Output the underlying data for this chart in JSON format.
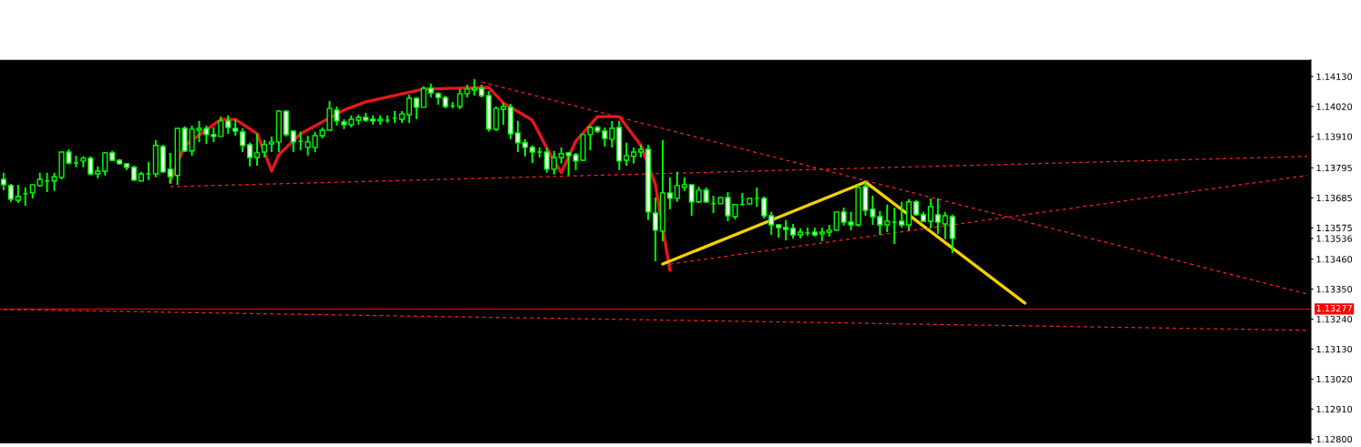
{
  "chart_data": {
    "type": "candlestick",
    "categories": [
      null,
      null,
      null,
      null,
      null,
      null,
      null,
      null,
      null,
      null,
      null,
      null,
      null,
      null,
      null,
      null,
      null,
      null,
      null,
      null,
      null,
      null,
      null,
      null,
      null,
      null,
      null,
      null,
      null,
      null,
      null,
      null,
      null,
      null,
      null,
      null,
      null,
      null,
      null,
      null,
      null,
      null,
      null,
      null,
      null,
      null,
      null,
      null,
      null,
      null,
      null,
      null,
      null,
      null,
      null,
      null,
      null,
      null,
      null,
      null,
      null,
      null,
      null,
      null,
      null,
      null,
      null,
      null,
      null,
      null,
      null,
      null,
      null,
      null,
      null,
      null,
      null,
      null,
      null,
      null,
      null,
      null,
      null,
      null,
      null,
      null,
      null,
      null,
      null,
      null,
      null,
      null,
      null,
      null,
      null,
      null,
      null,
      null,
      null,
      null,
      null,
      null,
      null,
      null,
      null,
      null,
      null,
      null,
      null,
      null,
      null,
      null,
      null,
      null,
      null,
      null,
      null,
      null,
      null,
      null,
      null,
      null,
      null,
      null,
      null,
      null,
      null,
      null,
      null,
      null,
      null,
      null,
      null,
      null,
      null,
      null,
      null,
      null,
      null,
      null,
      null,
      null,
      null,
      null,
      null,
      null,
      null,
      null,
      null,
      null,
      null,
      null,
      null,
      null,
      null,
      null,
      null,
      null,
      null,
      null,
      null,
      null,
      null,
      null,
      null,
      null,
      null,
      null,
      null,
      null,
      null,
      null,
      null,
      null,
      null,
      null,
      null,
      null,
      null,
      null,
      null
    ],
    "ohlc": [
      [
        1.13753,
        1.13777,
        1.13713,
        1.13733
      ],
      [
        1.1373,
        1.13736,
        1.1367,
        1.1368
      ],
      [
        1.13676,
        1.13733,
        1.13666,
        1.1369
      ],
      [
        1.137,
        1.13723,
        1.13656,
        1.137
      ],
      [
        1.13703,
        1.13733,
        1.13683,
        1.13733
      ],
      [
        1.1373,
        1.13777,
        1.13726,
        1.13753
      ],
      [
        1.13747,
        1.13777,
        1.13706,
        1.13747
      ],
      [
        1.13747,
        1.13777,
        1.1371,
        1.13763
      ],
      [
        1.1376,
        1.13853,
        1.13753,
        1.13853
      ],
      [
        1.13853,
        1.13863,
        1.13807,
        1.13813
      ],
      [
        1.13813,
        1.1384,
        1.13797,
        1.13813
      ],
      [
        1.1382,
        1.13837,
        1.13797,
        1.1383
      ],
      [
        1.1383,
        1.13837,
        1.13767,
        1.13773
      ],
      [
        1.13773,
        1.138,
        1.13757,
        1.13783
      ],
      [
        1.13783,
        1.13853,
        1.13767,
        1.1385
      ],
      [
        1.1385,
        1.13857,
        1.1382,
        1.13823
      ],
      [
        1.13823,
        1.13827,
        1.13807,
        1.1381
      ],
      [
        1.1381,
        1.13813,
        1.13787,
        1.13797
      ],
      [
        1.13797,
        1.13803,
        1.13747,
        1.1375
      ],
      [
        1.13747,
        1.1378,
        1.13747,
        1.13773
      ],
      [
        1.13773,
        1.13817,
        1.1375,
        1.13773
      ],
      [
        1.13773,
        1.13897,
        1.1376,
        1.13877
      ],
      [
        1.13873,
        1.1388,
        1.13777,
        1.1378
      ],
      [
        1.1379,
        1.1385,
        1.13736,
        1.13763
      ],
      [
        1.13767,
        1.1394,
        1.13733,
        1.1394
      ],
      [
        1.1394,
        1.13947,
        1.13853,
        1.13857
      ],
      [
        1.13857,
        1.1395,
        1.1384,
        1.13937
      ],
      [
        1.13933,
        1.13967,
        1.1389,
        1.1394
      ],
      [
        1.1394,
        1.1395,
        1.13883,
        1.13917
      ],
      [
        1.13917,
        1.13943,
        1.1389,
        1.1391
      ],
      [
        1.1391,
        1.13983,
        1.1391,
        1.13967
      ],
      [
        1.13967,
        1.13987,
        1.1392,
        1.13943
      ],
      [
        1.1394,
        1.13973,
        1.13913,
        1.1393
      ],
      [
        1.13927,
        1.1394,
        1.13853,
        1.13877
      ],
      [
        1.1388,
        1.13887,
        1.138,
        1.13833
      ],
      [
        1.13833,
        1.1392,
        1.13803,
        1.1385
      ],
      [
        1.13853,
        1.13897,
        1.13833,
        1.1388
      ],
      [
        1.13883,
        1.1391,
        1.13853,
        1.1389
      ],
      [
        1.1389,
        1.14007,
        1.13853,
        1.14003
      ],
      [
        1.14003,
        1.14007,
        1.1391,
        1.13917
      ],
      [
        1.1393,
        1.13933,
        1.13853,
        1.1389
      ],
      [
        1.13893,
        1.13927,
        1.1386,
        1.13893
      ],
      [
        1.1387,
        1.13913,
        1.1384,
        1.1389
      ],
      [
        1.1387,
        1.13927,
        1.13853,
        1.13913
      ],
      [
        1.13913,
        1.13943,
        1.13903,
        1.13933
      ],
      [
        1.13933,
        1.1404,
        1.13933,
        1.14013
      ],
      [
        1.14007,
        1.1402,
        1.1395,
        1.13967
      ],
      [
        1.13963,
        1.13973,
        1.13937,
        1.13953
      ],
      [
        1.13953,
        1.13987,
        1.13943,
        1.13973
      ],
      [
        1.1397,
        1.1399,
        1.13953,
        1.1398
      ],
      [
        1.1398,
        1.13997,
        1.13963,
        1.1397
      ],
      [
        1.13973,
        1.13987,
        1.13953,
        1.13967
      ],
      [
        1.13967,
        1.13987,
        1.13953,
        1.13973
      ],
      [
        1.1397,
        1.13987,
        1.1396,
        1.1397
      ],
      [
        1.13977,
        1.14003,
        1.1396,
        1.13977
      ],
      [
        1.13973,
        1.14003,
        1.1396,
        1.13993
      ],
      [
        1.1399,
        1.14063,
        1.1396,
        1.1405
      ],
      [
        1.1405,
        1.14053,
        1.13973,
        1.14017
      ],
      [
        1.14017,
        1.14094,
        1.14017,
        1.14087
      ],
      [
        1.14087,
        1.14104,
        1.14053,
        1.1407
      ],
      [
        1.14067,
        1.14073,
        1.14027,
        1.14053
      ],
      [
        1.14053,
        1.1406,
        1.14013,
        1.1402
      ],
      [
        1.14023,
        1.14037,
        1.14013,
        1.14023
      ],
      [
        1.1402,
        1.14084,
        1.1401,
        1.14067
      ],
      [
        1.14067,
        1.141,
        1.14053,
        1.14084
      ],
      [
        1.1408,
        1.1412,
        1.1406,
        1.14087
      ],
      [
        1.14087,
        1.141,
        1.14053,
        1.1406
      ],
      [
        1.1406,
        1.14077,
        1.13927,
        1.13937
      ],
      [
        1.13937,
        1.1402,
        1.1393,
        1.14013
      ],
      [
        1.1401,
        1.14033,
        1.13953,
        1.1402
      ],
      [
        1.14017,
        1.1403,
        1.139,
        1.1392
      ],
      [
        1.13923,
        1.13967,
        1.13853,
        1.13887
      ],
      [
        1.13887,
        1.139,
        1.13837,
        1.1387
      ],
      [
        1.1387,
        1.13877,
        1.13813,
        1.13853
      ],
      [
        1.13853,
        1.1387,
        1.13833,
        1.13853
      ],
      [
        1.13853,
        1.13867,
        1.13777,
        1.1379
      ],
      [
        1.1379,
        1.13857,
        1.1377,
        1.13833
      ],
      [
        1.13833,
        1.1387,
        1.1381,
        1.13847
      ],
      [
        1.1385,
        1.13853,
        1.13767,
        1.1384
      ],
      [
        1.13843,
        1.1385,
        1.13787,
        1.1382
      ],
      [
        1.13823,
        1.13917,
        1.1382,
        1.13917
      ],
      [
        1.13917,
        1.1395,
        1.1386,
        1.13943
      ],
      [
        1.13943,
        1.1395,
        1.13923,
        1.1393
      ],
      [
        1.1393,
        1.13943,
        1.13873,
        1.13903
      ],
      [
        1.139,
        1.13967,
        1.1387,
        1.1394
      ],
      [
        1.13943,
        1.13967,
        1.13787,
        1.1382
      ],
      [
        1.13823,
        1.13887,
        1.13803,
        1.1384
      ],
      [
        1.13837,
        1.1387,
        1.1381,
        1.13853
      ],
      [
        1.13853,
        1.1388,
        1.13833,
        1.13863
      ],
      [
        1.13863,
        1.1388,
        1.13603,
        1.13633
      ],
      [
        1.13629,
        1.13686,
        1.13452,
        1.13566
      ],
      [
        1.13563,
        1.13897,
        1.13526,
        1.13703
      ],
      [
        1.13703,
        1.1376,
        1.13643,
        1.13683
      ],
      [
        1.13683,
        1.1378,
        1.1367,
        1.1373
      ],
      [
        1.13723,
        1.1376,
        1.1371,
        1.13733
      ],
      [
        1.13733,
        1.13733,
        1.13619,
        1.1367
      ],
      [
        1.1367,
        1.13726,
        1.13666,
        1.13713
      ],
      [
        1.13713,
        1.13723,
        1.13666,
        1.1367
      ],
      [
        1.13663,
        1.13693,
        1.13629,
        1.13663
      ],
      [
        1.13663,
        1.13686,
        1.13663,
        1.13686
      ],
      [
        1.13686,
        1.13706,
        1.13599,
        1.13619
      ],
      [
        1.13616,
        1.1366,
        1.13606,
        1.1366
      ],
      [
        1.1366,
        1.13703,
        1.1366,
        1.1366
      ],
      [
        1.13663,
        1.13686,
        1.1366,
        1.13683
      ],
      [
        1.13683,
        1.13723,
        1.13653,
        1.13683
      ],
      [
        1.13683,
        1.1369,
        1.13609,
        1.13619
      ],
      [
        1.13619,
        1.13633,
        1.13549,
        1.13586
      ],
      [
        1.13586,
        1.13589,
        1.13539,
        1.13576
      ],
      [
        1.13576,
        1.13603,
        1.13529,
        1.13569
      ],
      [
        1.13573,
        1.13589,
        1.13536,
        1.13549
      ],
      [
        1.13549,
        1.13573,
        1.13536,
        1.13559
      ],
      [
        1.13556,
        1.13576,
        1.13546,
        1.13556
      ],
      [
        1.13559,
        1.13576,
        1.13543,
        1.13549
      ],
      [
        1.13553,
        1.13576,
        1.13526,
        1.13559
      ],
      [
        1.13559,
        1.13586,
        1.13543,
        1.13566
      ],
      [
        1.13566,
        1.13633,
        1.13563,
        1.13633
      ],
      [
        1.13633,
        1.13649,
        1.13583,
        1.13596
      ],
      [
        1.13596,
        1.13633,
        1.13566,
        1.13586
      ],
      [
        1.13586,
        1.13733,
        1.13579,
        1.13723
      ],
      [
        1.13726,
        1.13743,
        1.13619,
        1.13639
      ],
      [
        1.13643,
        1.13693,
        1.13586,
        1.13616
      ],
      [
        1.13616,
        1.13636,
        1.13549,
        1.13586
      ],
      [
        1.13586,
        1.1366,
        1.13559,
        1.13599
      ],
      [
        1.13596,
        1.13649,
        1.13516,
        1.13596
      ],
      [
        1.13599,
        1.1367,
        1.13576,
        1.13586
      ],
      [
        1.13586,
        1.1368,
        1.13566,
        1.1367
      ],
      [
        1.1367,
        1.13676,
        1.13619,
        1.13623
      ],
      [
        1.13623,
        1.13633,
        1.13596,
        1.13599
      ],
      [
        1.13599,
        1.13683,
        1.13573,
        1.13653
      ],
      [
        1.13623,
        1.13683,
        1.13553,
        1.13596
      ],
      [
        1.13589,
        1.13633,
        1.13533,
        1.13619
      ],
      [
        1.13616,
        1.13623,
        1.13482,
        1.13536
      ],
      null,
      null,
      null,
      null,
      null,
      null,
      null,
      null,
      null,
      null,
      null,
      null,
      null,
      null,
      null,
      null,
      null,
      null,
      null,
      null,
      null,
      null,
      null,
      null,
      null,
      null,
      null,
      null,
      null,
      null,
      null,
      null,
      null,
      null,
      null,
      null,
      null,
      null,
      null,
      null,
      null,
      null,
      null,
      null,
      null,
      null,
      null,
      null,
      null
    ],
    "color": "#00ff00",
    "series": [
      {
        "type": "line",
        "color": "#e8161b",
        "line_style": "solid",
        "values": [
          null,
          null,
          null,
          null,
          null,
          null,
          null,
          null,
          null,
          null,
          null,
          null,
          null,
          null,
          null,
          null,
          null,
          null,
          null,
          null,
          null,
          null,
          null,
          1.13743,
          null,
          1.13877,
          null,
          null,
          null,
          null,
          1.13973,
          null,
          1.13973,
          null,
          null,
          1.1392,
          1.13853,
          1.13783,
          1.13843,
          null,
          null,
          1.1392,
          null,
          null,
          null,
          null,
          null,
          1.14007,
          null,
          null,
          1.14037,
          null,
          null,
          null,
          null,
          null,
          null,
          null,
          1.14084,
          null,
          null,
          null,
          null,
          null,
          null,
          null,
          null,
          1.1409,
          null,
          1.14033,
          null,
          null,
          null,
          1.1397,
          null,
          1.13867,
          null,
          1.13777,
          null,
          1.13893,
          null,
          null,
          1.13983,
          null,
          null,
          1.13983,
          null,
          null,
          1.13877,
          null,
          1.13733,
          null,
          1.13419,
          null,
          null,
          null,
          null,
          null,
          null,
          null,
          null,
          null,
          null,
          null,
          null,
          null,
          null,
          null,
          null,
          null,
          null,
          null,
          null,
          null,
          null,
          null,
          null,
          null,
          null,
          null,
          null,
          null,
          null,
          null,
          null,
          null,
          null,
          null,
          null,
          null,
          null,
          null,
          null,
          null,
          null,
          null,
          null,
          null,
          null,
          null,
          null,
          null,
          null,
          null,
          null,
          null,
          null,
          null,
          null,
          null,
          null,
          null,
          null,
          null,
          null,
          null,
          null,
          null,
          null,
          null,
          null,
          null,
          null,
          null,
          null,
          null,
          null,
          null,
          null,
          null,
          null,
          null,
          null,
          null,
          null,
          null,
          null,
          null,
          null,
          null,
          null
        ]
      },
      {
        "type": "line",
        "color": "#f5d000",
        "line_style": "solid",
        "values": [
          null,
          null,
          null,
          null,
          null,
          null,
          null,
          null,
          null,
          null,
          null,
          null,
          null,
          null,
          null,
          null,
          null,
          null,
          null,
          null,
          null,
          null,
          null,
          null,
          null,
          null,
          null,
          null,
          null,
          null,
          null,
          null,
          null,
          null,
          null,
          null,
          null,
          null,
          null,
          null,
          null,
          null,
          null,
          null,
          null,
          null,
          null,
          null,
          null,
          null,
          null,
          null,
          null,
          null,
          null,
          null,
          null,
          null,
          null,
          null,
          null,
          null,
          null,
          null,
          null,
          null,
          null,
          null,
          null,
          null,
          null,
          null,
          null,
          null,
          null,
          null,
          null,
          null,
          null,
          null,
          null,
          null,
          null,
          null,
          null,
          null,
          null,
          null,
          null,
          null,
          null,
          1.13442,
          null,
          null,
          null,
          null,
          null,
          null,
          null,
          null,
          null,
          null,
          null,
          null,
          null,
          null,
          null,
          null,
          null,
          null,
          null,
          null,
          null,
          null,
          null,
          null,
          null,
          null,
          null,
          1.13743,
          null,
          null,
          null,
          null,
          null,
          null,
          null,
          null,
          null,
          null,
          null,
          null,
          null,
          null,
          null,
          null,
          null,
          null,
          null,
          null,
          null,
          null,
          null,
          null,
          null,
          null,
          null,
          null,
          null,
          null,
          null,
          null,
          null,
          null,
          null,
          null,
          null,
          null,
          null,
          null,
          null,
          null,
          null,
          null,
          null,
          null,
          null,
          null,
          null,
          null,
          null,
          null,
          null,
          null,
          null,
          null,
          null,
          null,
          null,
          null,
          null
        ]
      },
      {
        "type": "line",
        "color": "#f5d000",
        "line_style": "solid",
        "values": [
          null,
          null,
          null,
          null,
          null,
          null,
          null,
          null,
          null,
          null,
          null,
          null,
          null,
          null,
          null,
          null,
          null,
          null,
          null,
          null,
          null,
          null,
          null,
          null,
          null,
          null,
          null,
          null,
          null,
          null,
          null,
          null,
          null,
          null,
          null,
          null,
          null,
          null,
          null,
          null,
          null,
          null,
          null,
          null,
          null,
          null,
          null,
          null,
          null,
          null,
          null,
          null,
          null,
          null,
          null,
          null,
          null,
          null,
          null,
          null,
          null,
          null,
          null,
          null,
          null,
          null,
          null,
          null,
          null,
          null,
          null,
          null,
          null,
          null,
          null,
          null,
          null,
          null,
          null,
          null,
          null,
          null,
          null,
          null,
          null,
          null,
          null,
          null,
          null,
          null,
          null,
          null,
          null,
          null,
          null,
          null,
          null,
          null,
          null,
          null,
          null,
          null,
          null,
          null,
          null,
          null,
          null,
          null,
          null,
          null,
          null,
          null,
          null,
          null,
          null,
          null,
          null,
          null,
          null,
          1.13743,
          null,
          null,
          null,
          null,
          null,
          null,
          null,
          null,
          null,
          null,
          null,
          null,
          null,
          null,
          null,
          null,
          null,
          null,
          null,
          null,
          null,
          1.13299,
          null,
          null,
          null,
          null,
          null,
          null,
          null,
          null,
          null,
          null,
          null,
          null,
          null,
          null,
          null,
          null,
          null,
          null,
          null,
          null,
          null,
          null,
          null,
          null,
          null,
          null,
          null,
          null,
          null,
          null,
          null,
          null,
          null,
          null,
          null,
          null,
          null,
          null,
          null
        ]
      },
      {
        "type": "line",
        "color": "#ff2020",
        "line_style": "dashed",
        "values": [
          null,
          null,
          null,
          null,
          null,
          null,
          null,
          null,
          null,
          null,
          null,
          null,
          null,
          null,
          null,
          null,
          null,
          null,
          null,
          null,
          null,
          null,
          null,
          1.13726,
          null,
          null,
          null,
          null,
          null,
          null,
          null,
          null,
          null,
          null,
          null,
          null,
          null,
          null,
          null,
          null,
          null,
          null,
          null,
          null,
          null,
          null,
          null,
          null,
          null,
          null,
          null,
          null,
          null,
          null,
          null,
          null,
          null,
          null,
          null,
          null,
          null,
          null,
          null,
          null,
          null,
          null,
          null,
          null,
          null,
          null,
          null,
          null,
          null,
          null,
          null,
          null,
          null,
          null,
          null,
          null,
          null,
          null,
          null,
          null,
          null,
          null,
          null,
          null,
          null,
          null,
          null,
          null,
          null,
          null,
          null,
          null,
          null,
          null,
          null,
          null,
          null,
          null,
          null,
          null,
          null,
          null,
          null,
          null,
          null,
          null,
          null,
          null,
          null,
          null,
          null,
          null,
          null,
          null,
          null,
          null,
          null,
          null,
          null,
          null,
          null,
          null,
          null,
          null,
          null,
          null,
          null,
          null,
          null,
          null,
          null,
          null,
          null,
          null,
          null,
          null,
          null,
          null,
          null,
          null,
          null,
          null,
          null,
          null,
          null,
          null,
          null,
          null,
          null,
          null,
          null,
          null,
          null,
          null,
          null,
          null,
          null,
          null,
          null,
          null,
          null,
          null,
          null,
          null,
          null,
          null,
          null,
          null,
          null,
          null,
          null,
          null,
          null,
          null,
          null,
          null,
          1.13837
        ]
      },
      {
        "type": "line",
        "color": "#ff2020",
        "line_style": "dashed",
        "values": [
          null,
          null,
          null,
          null,
          null,
          null,
          null,
          null,
          null,
          null,
          null,
          null,
          null,
          null,
          null,
          null,
          null,
          null,
          null,
          null,
          null,
          null,
          null,
          null,
          null,
          null,
          null,
          null,
          null,
          null,
          null,
          null,
          null,
          null,
          null,
          null,
          null,
          null,
          null,
          null,
          null,
          null,
          null,
          null,
          null,
          null,
          null,
          null,
          null,
          null,
          null,
          null,
          null,
          null,
          null,
          null,
          null,
          null,
          null,
          null,
          null,
          null,
          null,
          null,
          null,
          null,
          1.1411,
          null,
          null,
          null,
          null,
          null,
          null,
          null,
          null,
          null,
          null,
          null,
          null,
          null,
          null,
          null,
          null,
          null,
          null,
          null,
          null,
          null,
          null,
          null,
          null,
          null,
          null,
          null,
          null,
          null,
          null,
          null,
          null,
          null,
          null,
          null,
          null,
          null,
          null,
          null,
          null,
          null,
          null,
          null,
          null,
          null,
          null,
          null,
          null,
          null,
          null,
          null,
          null,
          null,
          null,
          null,
          null,
          null,
          null,
          null,
          null,
          null,
          null,
          null,
          null,
          null,
          null,
          null,
          null,
          null,
          null,
          null,
          null,
          null,
          null,
          null,
          null,
          null,
          null,
          null,
          null,
          null,
          null,
          null,
          null,
          null,
          null,
          null,
          null,
          null,
          null,
          null,
          null,
          null,
          null,
          null,
          null,
          null,
          null,
          null,
          null,
          null,
          null,
          null,
          null,
          null,
          null,
          null,
          null,
          null,
          null,
          null,
          null,
          null,
          1.13332
        ]
      },
      {
        "type": "line",
        "color": "#ff2020",
        "line_style": "dashed",
        "values": [
          null,
          null,
          null,
          null,
          null,
          null,
          null,
          null,
          null,
          null,
          null,
          null,
          null,
          null,
          null,
          null,
          null,
          null,
          null,
          null,
          null,
          null,
          null,
          null,
          null,
          null,
          null,
          null,
          null,
          null,
          null,
          null,
          null,
          null,
          null,
          null,
          null,
          null,
          null,
          null,
          null,
          null,
          null,
          null,
          null,
          null,
          null,
          null,
          null,
          null,
          null,
          null,
          null,
          null,
          null,
          null,
          null,
          null,
          null,
          null,
          null,
          null,
          null,
          null,
          null,
          null,
          null,
          null,
          null,
          null,
          null,
          null,
          null,
          null,
          null,
          null,
          null,
          null,
          null,
          null,
          null,
          null,
          null,
          null,
          null,
          null,
          null,
          null,
          null,
          null,
          null,
          null,
          1.13442,
          null,
          null,
          null,
          null,
          null,
          null,
          null,
          null,
          null,
          null,
          null,
          null,
          null,
          null,
          null,
          null,
          null,
          null,
          null,
          null,
          null,
          null,
          null,
          null,
          null,
          null,
          null,
          null,
          null,
          null,
          null,
          null,
          null,
          null,
          null,
          null,
          null,
          null,
          null,
          null,
          null,
          null,
          null,
          null,
          null,
          null,
          null,
          null,
          null,
          null,
          null,
          null,
          null,
          null,
          null,
          null,
          null,
          null,
          null,
          null,
          null,
          null,
          null,
          null,
          null,
          null,
          null,
          null,
          null,
          null,
          null,
          null,
          null,
          null,
          null,
          null,
          null,
          null,
          null,
          null,
          null,
          null,
          null,
          null,
          null,
          null,
          null,
          1.13767
        ]
      },
      {
        "type": "line",
        "color": "#ff2020",
        "line_style": "dashed",
        "values": [
          1.13275,
          null,
          null,
          null,
          null,
          null,
          null,
          null,
          null,
          null,
          null,
          null,
          null,
          null,
          null,
          null,
          null,
          null,
          null,
          null,
          null,
          null,
          null,
          null,
          null,
          null,
          null,
          null,
          null,
          null,
          null,
          null,
          null,
          null,
          null,
          null,
          null,
          null,
          null,
          null,
          null,
          null,
          null,
          null,
          null,
          null,
          null,
          null,
          null,
          null,
          null,
          null,
          null,
          null,
          null,
          null,
          null,
          null,
          null,
          null,
          null,
          null,
          null,
          null,
          null,
          null,
          null,
          null,
          null,
          null,
          null,
          null,
          null,
          null,
          null,
          null,
          null,
          null,
          null,
          null,
          null,
          null,
          null,
          null,
          null,
          null,
          null,
          null,
          null,
          null,
          null,
          null,
          null,
          null,
          null,
          null,
          null,
          null,
          null,
          null,
          null,
          null,
          null,
          null,
          null,
          null,
          null,
          null,
          null,
          null,
          null,
          null,
          null,
          null,
          null,
          null,
          null,
          null,
          null,
          null,
          null,
          null,
          null,
          null,
          null,
          null,
          null,
          null,
          null,
          null,
          null,
          null,
          null,
          null,
          null,
          null,
          null,
          null,
          null,
          null,
          null,
          null,
          null,
          null,
          null,
          null,
          null,
          null,
          null,
          null,
          null,
          null,
          null,
          null,
          null,
          null,
          null,
          null,
          null,
          null,
          null,
          null,
          null,
          null,
          null,
          null,
          null,
          null,
          null,
          null,
          null,
          null,
          null,
          null,
          null,
          null,
          null,
          null,
          null,
          null,
          1.13199
        ]
      }
    ],
    "ref_lines": [
      {
        "axis": "y",
        "value": 1.13277,
        "label": "1.13277",
        "color": "#ff0000",
        "line_style": "solid"
      }
    ],
    "ylim": [
      1.12784,
      1.14191
    ],
    "yticks": [
      {
        "value": 1.1413,
        "label": "1.14130"
      },
      {
        "value": 1.1402,
        "label": "1.14020"
      },
      {
        "value": 1.1391,
        "label": "1.13910"
      },
      {
        "value": 1.13795,
        "label": "1.13795"
      },
      {
        "value": 1.13685,
        "label": "1.13685"
      },
      {
        "value": 1.13575,
        "label": "1.13575"
      },
      {
        "value": 1.13536,
        "label": "1.13536"
      },
      {
        "value": 1.1346,
        "label": "1.13460"
      },
      {
        "value": 1.1335,
        "label": "1.13350"
      },
      {
        "value": 1.1324,
        "label": "1.13240"
      },
      {
        "value": 1.1313,
        "label": "1.13130"
      },
      {
        "value": 1.1302,
        "label": "1.13020"
      },
      {
        "value": 1.1291,
        "label": "1.12910"
      },
      {
        "value": 1.128,
        "label": "1.12800"
      }
    ],
    "tick_labels": "y",
    "grid": false,
    "legend": false
  }
}
